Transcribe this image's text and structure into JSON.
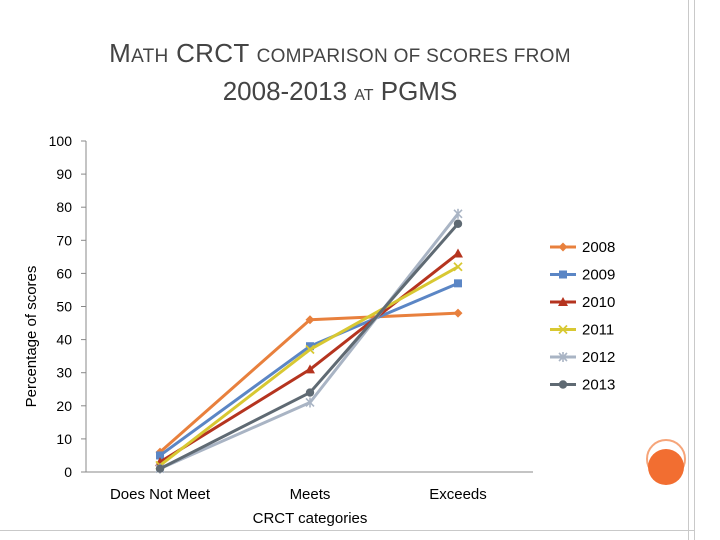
{
  "slide": {
    "title_line1_part1": "M",
    "title_line1_part2": "ATH",
    "title_line1_part3": " CRCT ",
    "title_line1_part4": "COMPARISON OF SCORES FROM",
    "title_line2_part1": "2008-2013 ",
    "title_line2_part2": "AT",
    "title_line2_part3": " PGMS",
    "accent_colors": {
      "orange_fill": "#f26e31",
      "orange_light": "#f6a57a",
      "frame": "#c9c9c9"
    }
  },
  "chart_data": {
    "type": "line",
    "title": "",
    "xlabel": "CRCT categories",
    "ylabel": "Percentage of scores",
    "categories": [
      "Does Not Meet",
      "Meets",
      "Exceeds"
    ],
    "ylim": [
      0,
      100
    ],
    "yticks": [
      0,
      10,
      20,
      30,
      40,
      50,
      60,
      70,
      80,
      90,
      100
    ],
    "legend_position": "right",
    "series": [
      {
        "name": "2008",
        "values": [
          6,
          46,
          48
        ],
        "color": "#e8803d",
        "marker": "diamond"
      },
      {
        "name": "2009",
        "values": [
          5,
          38,
          57
        ],
        "color": "#5b86c5",
        "marker": "square"
      },
      {
        "name": "2010",
        "values": [
          3,
          31,
          66
        ],
        "color": "#b5341f",
        "marker": "triangle"
      },
      {
        "name": "2011",
        "values": [
          2,
          37,
          62
        ],
        "color": "#d8c832",
        "marker": "x"
      },
      {
        "name": "2012",
        "values": [
          1,
          21,
          78
        ],
        "color": "#a9b4c4",
        "marker": "star"
      },
      {
        "name": "2013",
        "values": [
          1,
          24,
          75
        ],
        "color": "#5f6a73",
        "marker": "circle"
      }
    ]
  }
}
